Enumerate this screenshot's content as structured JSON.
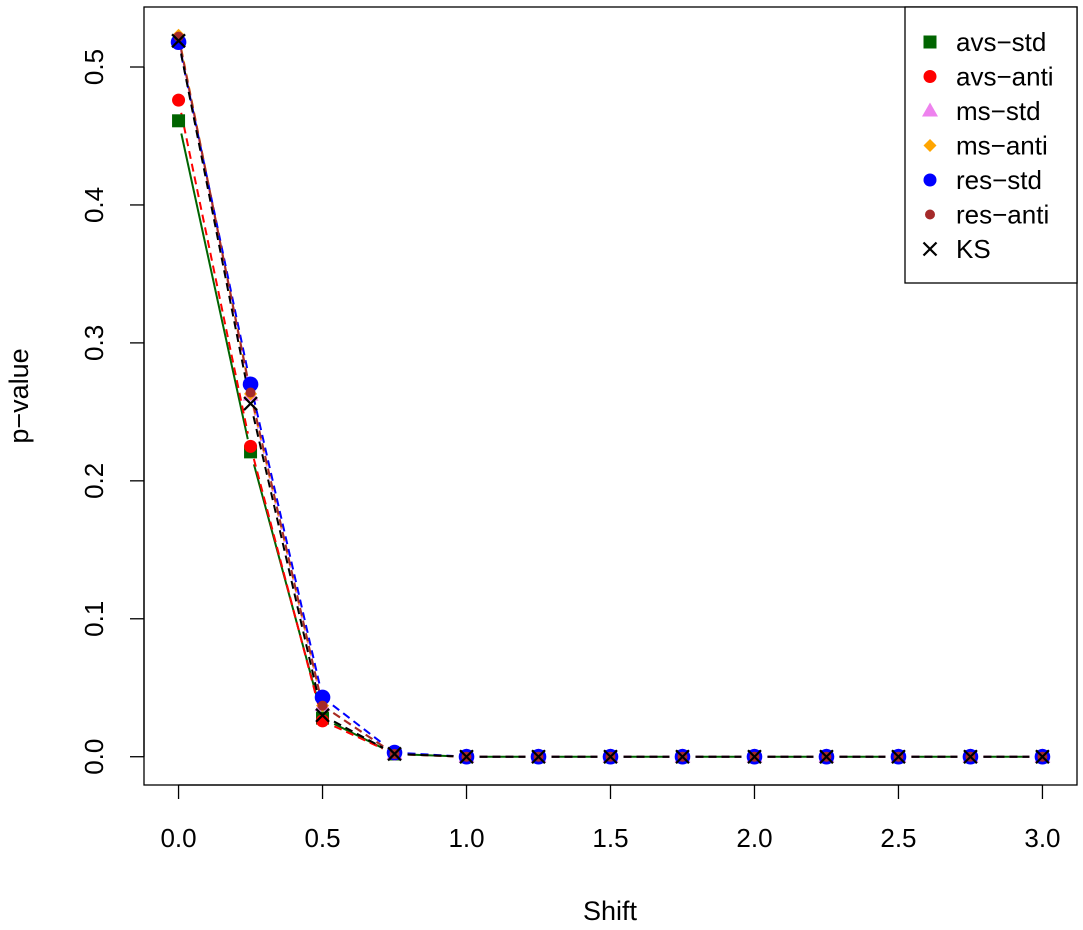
{
  "chart_data": {
    "type": "line",
    "title": "",
    "xlabel": "Shift",
    "ylabel": "p−value",
    "xlim": [
      -0.12,
      3.12
    ],
    "ylim": [
      -0.0205,
      0.5435
    ],
    "grid": false,
    "legend_position": "top-right",
    "x_ticks": [
      0.0,
      0.5,
      1.0,
      1.5,
      2.0,
      2.5,
      3.0
    ],
    "x_tick_labels": [
      "0.0",
      "0.5",
      "1.0",
      "1.5",
      "2.0",
      "2.5",
      "3.0"
    ],
    "y_ticks": [
      0.0,
      0.1,
      0.2,
      0.3,
      0.4,
      0.5
    ],
    "y_tick_labels": [
      "0.0",
      "0.1",
      "0.2",
      "0.3",
      "0.4",
      "0.5"
    ],
    "x": [
      0.0,
      0.25,
      0.5,
      0.75,
      1.0,
      1.25,
      1.5,
      1.75,
      2.0,
      2.25,
      2.5,
      2.75,
      3.0
    ],
    "series": [
      {
        "name": "avs−std",
        "color": "#006400",
        "marker": "square",
        "line": "solid",
        "values": [
          0.461,
          0.221,
          0.028,
          0.002,
          0.0,
          0.0,
          0.0,
          0.0,
          0.0,
          0.0,
          0.0,
          0.0,
          0.0
        ]
      },
      {
        "name": "avs−anti",
        "color": "#ff0000",
        "marker": "circle",
        "line": "dashed",
        "values": [
          0.476,
          0.225,
          0.026,
          0.002,
          0.0,
          0.0,
          0.0,
          0.0,
          0.0,
          0.0,
          0.0,
          0.0,
          0.0
        ]
      },
      {
        "name": "ms−std",
        "color": "#ee82ee",
        "marker": "triangle",
        "line": "dashed",
        "values": [
          0.521,
          0.262,
          0.037,
          0.002,
          0.0,
          0.0,
          0.0,
          0.0,
          0.0,
          0.0,
          0.0,
          0.0,
          0.0
        ]
      },
      {
        "name": "ms−anti",
        "color": "#ffa500",
        "marker": "diamond",
        "line": "dashed",
        "values": [
          0.523,
          0.263,
          0.037,
          0.002,
          0.0,
          0.0,
          0.0,
          0.0,
          0.0,
          0.0,
          0.0,
          0.0,
          0.0
        ]
      },
      {
        "name": "res−std",
        "color": "#0000ff",
        "marker": "circle-large",
        "line": "dashed",
        "values": [
          0.518,
          0.27,
          0.043,
          0.003,
          0.0,
          0.0,
          0.0,
          0.0,
          0.0,
          0.0,
          0.0,
          0.0,
          0.0
        ]
      },
      {
        "name": "res−anti",
        "color": "#a52a2a",
        "marker": "circle-small",
        "line": "dashed",
        "values": [
          0.522,
          0.264,
          0.037,
          0.002,
          0.0,
          0.0,
          0.0,
          0.0,
          0.0,
          0.0,
          0.0,
          0.0,
          0.0
        ]
      },
      {
        "name": "KS",
        "color": "#000000",
        "marker": "cross",
        "line": "dashed",
        "values": [
          0.519,
          0.256,
          0.03,
          0.002,
          0.0,
          0.0,
          0.0,
          0.0,
          0.0,
          0.0,
          0.0,
          0.0,
          0.0
        ]
      }
    ]
  }
}
